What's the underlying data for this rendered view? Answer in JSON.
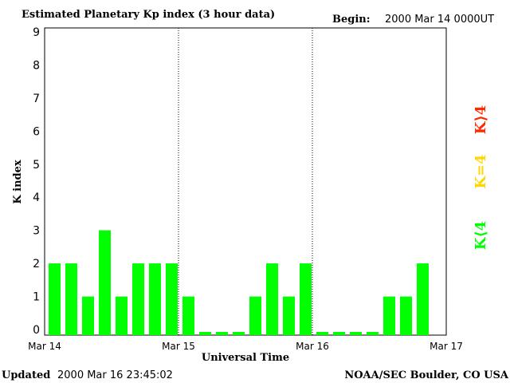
{
  "header": {
    "title": "Estimated Planetary Kp index (3 hour data)",
    "begin_label": "Begin:",
    "begin_value": "2000 Mar 14 0000UT"
  },
  "footer": {
    "updated_label": "Updated",
    "updated_value": "2000 Mar 16 23:45:02",
    "credit": "NOAA/SEC Boulder, CO USA"
  },
  "legend": [
    {
      "label": "K⟨4",
      "color": "#00ff00"
    },
    {
      "label": "K=4",
      "color": "#ffd700"
    },
    {
      "label": "K⟩4",
      "color": "#ff2a00"
    }
  ],
  "chart_data": {
    "type": "bar",
    "title": "Estimated Planetary Kp index (3 hour data)",
    "xlabel": "Universal Time",
    "ylabel": "K index",
    "ylim": [
      0,
      9
    ],
    "yticks": [
      "0",
      "1",
      "2",
      "3",
      "4",
      "5",
      "6",
      "7",
      "8",
      "9"
    ],
    "xticks": [
      "Mar 14",
      "Mar 15",
      "Mar 16",
      "Mar 17"
    ],
    "interval_hours": 3,
    "bar_color": "#00ff00",
    "values": [
      2,
      2,
      1,
      3,
      1,
      2,
      2,
      2,
      1,
      0,
      0,
      0,
      1,
      2,
      1,
      2,
      0,
      0,
      0,
      0,
      1,
      1,
      2
    ]
  }
}
